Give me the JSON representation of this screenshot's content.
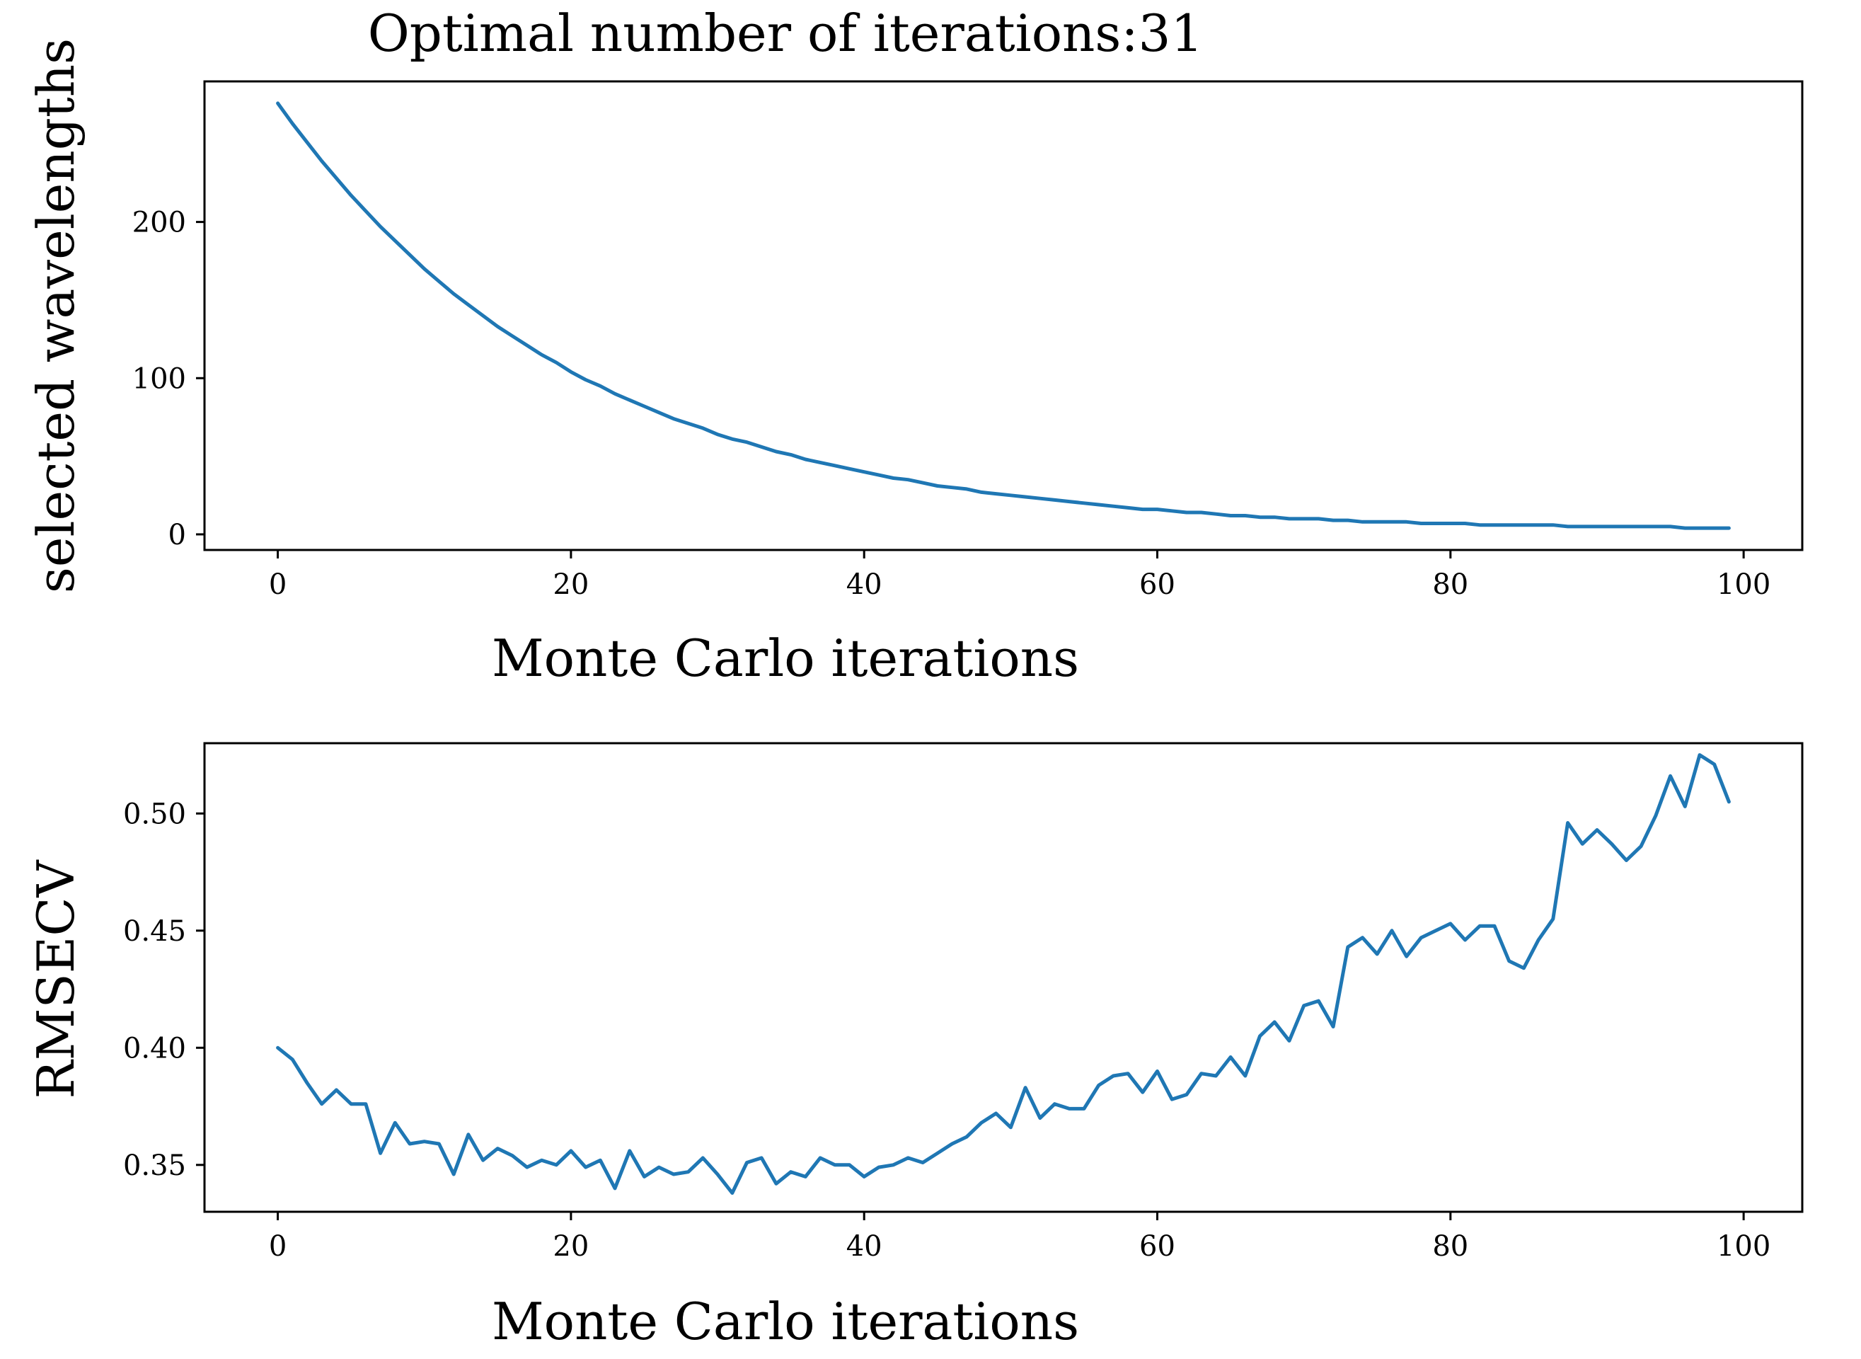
{
  "page_title": "Optimal number of iterations:31",
  "chart_data": [
    {
      "type": "line",
      "title": "Optimal number of iterations:31",
      "xlabel": "Monte Carlo iterations",
      "ylabel": "selected wavelengths",
      "xlim": [
        -5,
        104
      ],
      "ylim": [
        -10,
        290
      ],
      "xticks": [
        0,
        20,
        40,
        60,
        80,
        100
      ],
      "yticks": [
        0,
        100,
        200
      ],
      "line_color": "#1f77b4",
      "series": [
        {
          "name": "selected wavelengths",
          "x": [
            0,
            1,
            2,
            3,
            4,
            5,
            6,
            7,
            8,
            9,
            10,
            11,
            12,
            13,
            14,
            15,
            16,
            17,
            18,
            19,
            20,
            21,
            22,
            23,
            24,
            25,
            26,
            27,
            28,
            29,
            30,
            31,
            32,
            33,
            34,
            35,
            36,
            37,
            38,
            39,
            40,
            41,
            42,
            43,
            44,
            45,
            46,
            47,
            48,
            49,
            50,
            51,
            52,
            53,
            54,
            55,
            56,
            57,
            58,
            59,
            60,
            61,
            62,
            63,
            64,
            65,
            66,
            67,
            68,
            69,
            70,
            71,
            72,
            73,
            74,
            75,
            76,
            77,
            78,
            79,
            80,
            81,
            82,
            83,
            84,
            85,
            86,
            87,
            88,
            89,
            90,
            91,
            92,
            93,
            94,
            95,
            96,
            97,
            98,
            99
          ],
          "values": [
            276,
            263,
            251,
            239,
            228,
            217,
            207,
            197,
            188,
            179,
            170,
            162,
            154,
            147,
            140,
            133,
            127,
            121,
            115,
            110,
            104,
            99,
            95,
            90,
            86,
            82,
            78,
            74,
            71,
            68,
            64,
            61,
            59,
            56,
            53,
            51,
            48,
            46,
            44,
            42,
            40,
            38,
            36,
            35,
            33,
            31,
            30,
            29,
            27,
            26,
            25,
            24,
            23,
            22,
            21,
            20,
            19,
            18,
            17,
            16,
            16,
            15,
            14,
            14,
            13,
            12,
            12,
            11,
            11,
            10,
            10,
            10,
            9,
            9,
            8,
            8,
            8,
            8,
            7,
            7,
            7,
            7,
            6,
            6,
            6,
            6,
            6,
            6,
            5,
            5,
            5,
            5,
            5,
            5,
            5,
            5,
            4,
            4,
            4,
            4
          ]
        }
      ]
    },
    {
      "type": "line",
      "title": "",
      "xlabel": "Monte Carlo iterations",
      "ylabel": "RMSECV",
      "xlim": [
        -5,
        104
      ],
      "ylim": [
        0.33,
        0.53
      ],
      "xticks": [
        0,
        20,
        40,
        60,
        80,
        100
      ],
      "yticks": [
        0.35,
        0.4,
        0.45,
        0.5
      ],
      "ytick_format": 2,
      "line_color": "#1f77b4",
      "series": [
        {
          "name": "RMSECV",
          "x": [
            0,
            1,
            2,
            3,
            4,
            5,
            6,
            7,
            8,
            9,
            10,
            11,
            12,
            13,
            14,
            15,
            16,
            17,
            18,
            19,
            20,
            21,
            22,
            23,
            24,
            25,
            26,
            27,
            28,
            29,
            30,
            31,
            32,
            33,
            34,
            35,
            36,
            37,
            38,
            39,
            40,
            41,
            42,
            43,
            44,
            45,
            46,
            47,
            48,
            49,
            50,
            51,
            52,
            53,
            54,
            55,
            56,
            57,
            58,
            59,
            60,
            61,
            62,
            63,
            64,
            65,
            66,
            67,
            68,
            69,
            70,
            71,
            72,
            73,
            74,
            75,
            76,
            77,
            78,
            79,
            80,
            81,
            82,
            83,
            84,
            85,
            86,
            87,
            88,
            89,
            90,
            91,
            92,
            93,
            94,
            95,
            96,
            97,
            98,
            99
          ],
          "values": [
            0.4,
            0.395,
            0.385,
            0.376,
            0.382,
            0.376,
            0.376,
            0.355,
            0.368,
            0.359,
            0.36,
            0.359,
            0.346,
            0.363,
            0.352,
            0.357,
            0.354,
            0.349,
            0.352,
            0.35,
            0.356,
            0.349,
            0.352,
            0.34,
            0.356,
            0.345,
            0.349,
            0.346,
            0.347,
            0.353,
            0.346,
            0.338,
            0.351,
            0.353,
            0.342,
            0.347,
            0.345,
            0.353,
            0.35,
            0.35,
            0.345,
            0.349,
            0.35,
            0.353,
            0.351,
            0.355,
            0.359,
            0.362,
            0.368,
            0.372,
            0.366,
            0.383,
            0.37,
            0.376,
            0.374,
            0.374,
            0.384,
            0.388,
            0.389,
            0.381,
            0.39,
            0.378,
            0.38,
            0.389,
            0.388,
            0.396,
            0.388,
            0.405,
            0.411,
            0.403,
            0.418,
            0.42,
            0.409,
            0.443,
            0.447,
            0.44,
            0.45,
            0.439,
            0.447,
            0.45,
            0.453,
            0.446,
            0.452,
            0.452,
            0.437,
            0.434,
            0.446,
            0.455,
            0.496,
            0.487,
            0.493,
            0.487,
            0.48,
            0.486,
            0.499,
            0.516,
            0.503,
            0.525,
            0.521,
            0.505
          ]
        }
      ]
    }
  ]
}
